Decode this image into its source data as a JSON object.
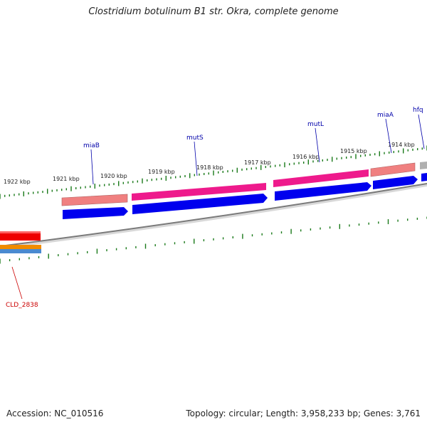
{
  "title": "Clostridium botulinum B1 str. Okra, complete genome",
  "footer": {
    "accession": "Accession: NC_010516",
    "summary": "Topology: circular; Length: 3,958,233 bp; Genes: 3,761"
  },
  "colors": {
    "tick": "#1a7a1a",
    "backbone": "#808080",
    "label_blue": "#0000aa",
    "label_red": "#cc0000",
    "gene_blue": "#0000ee",
    "gene_magenta": "#ee1a8c",
    "gene_pink": "#f08080",
    "gene_red": "#ee0000",
    "gene_orange": "#f08c00",
    "gene_steelblue": "#4a8ad0",
    "gene_gray": "#b0b0b0"
  },
  "kbp_labels": [
    "1922 kbp",
    "1921 kbp",
    "1920 kbp",
    "1919 kbp",
    "1918 kbp",
    "1917 kbp",
    "1916 kbp",
    "1915 kbp",
    "1914 kbp"
  ],
  "gene_labels": [
    {
      "text": "miaB",
      "color": "label_blue"
    },
    {
      "text": "mutS",
      "color": "label_blue"
    },
    {
      "text": "mutL",
      "color": "label_blue"
    },
    {
      "text": "miaA",
      "color": "label_blue"
    },
    {
      "text": "hfq",
      "color": "label_blue"
    },
    {
      "text": "CLD_2838",
      "color": "label_red"
    }
  ]
}
